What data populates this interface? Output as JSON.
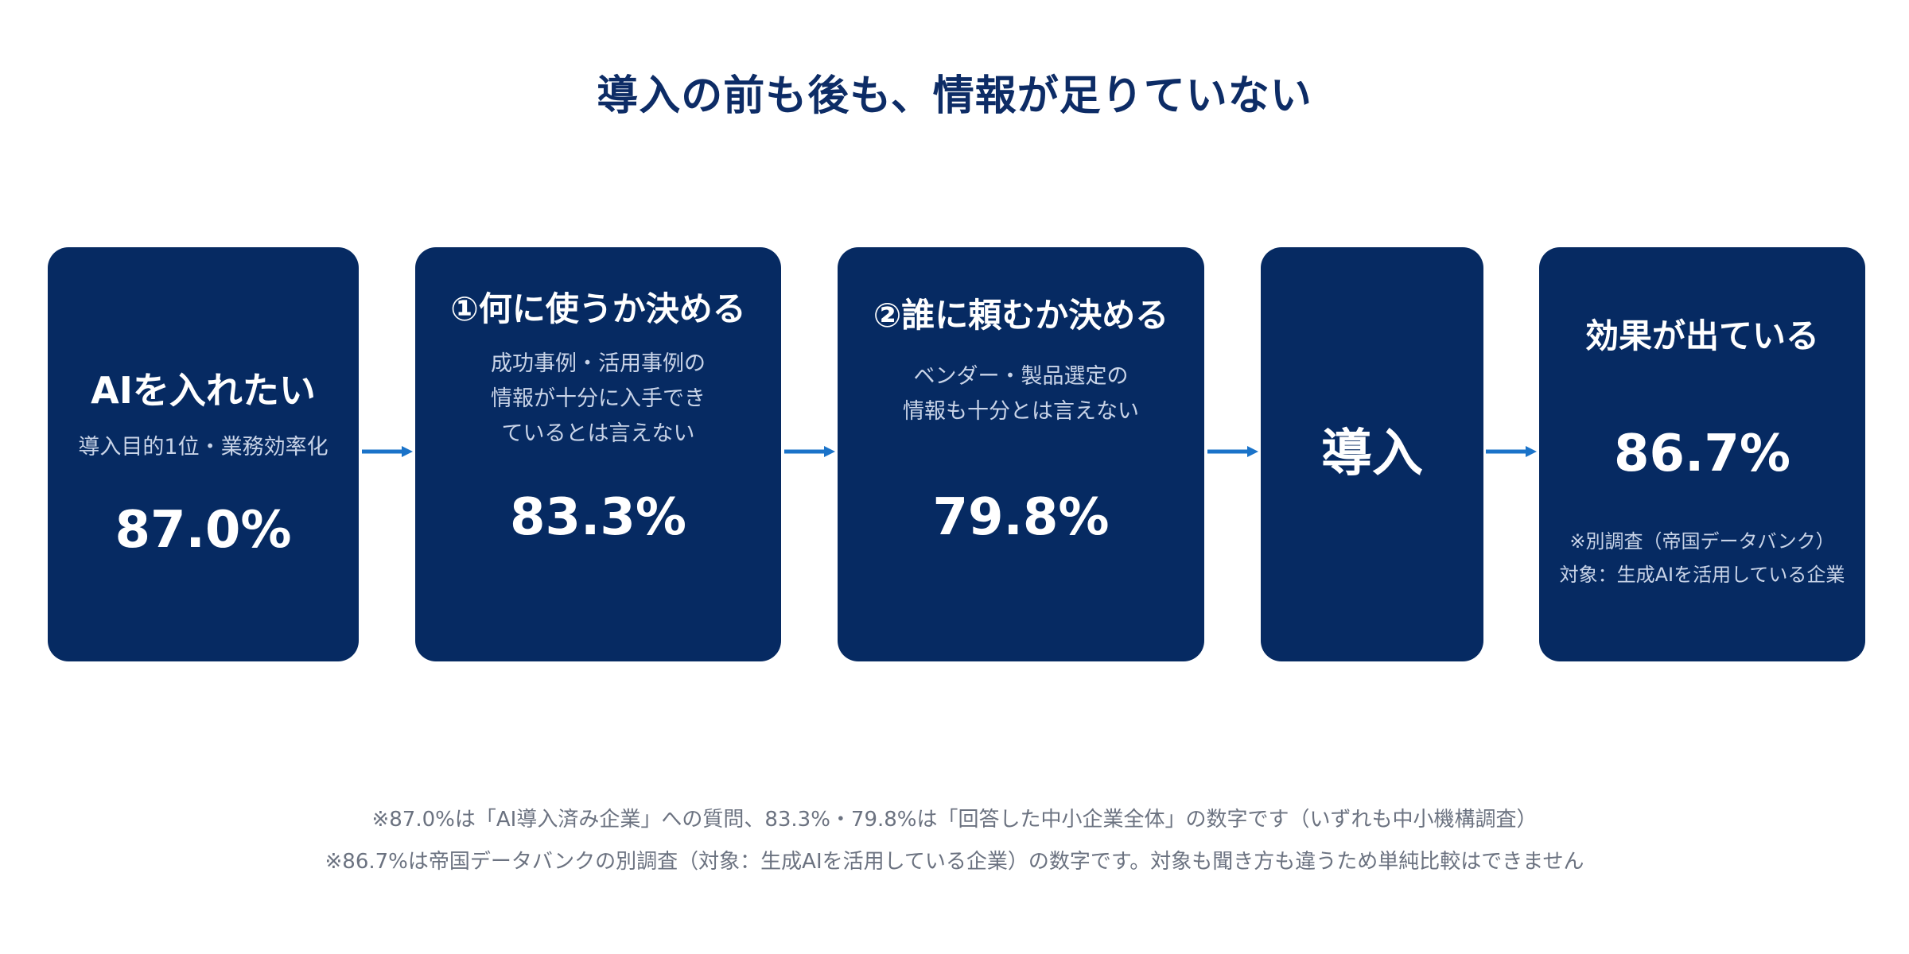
{
  "title": "導入の前も後も、情報が足りていない",
  "colors": {
    "card_bg": "#062a62",
    "title": "#0d2c66",
    "arrow": "#1a73c9",
    "footnote": "#6b7280"
  },
  "steps": [
    {
      "title": "AIを入れたい",
      "subtitle": "導入目的1位・業務効率化",
      "value": "87.0%"
    },
    {
      "title": "①何に使うか決める",
      "subtitle": "成功事例・活用事例の\n情報が十分に入手でき\nているとは言えない",
      "value": "83.3%"
    },
    {
      "title": "②誰に頼むか決める",
      "subtitle": "ベンダー・製品選定の\n情報も十分とは言えない",
      "value": "79.8%"
    },
    {
      "title": "導入"
    },
    {
      "title": "効果が出ている",
      "value": "86.7%",
      "note": "※別調査（帝国データバンク）\n対象：生成AIを活用している企業"
    }
  ],
  "footnotes": [
    "※87.0%は「AI導入済み企業」への質問、83.3%・79.8%は「回答した中小企業全体」の数字です（いずれも中小機構調査）",
    "※86.7%は帝国データバンクの別調査（対象：生成AIを活用している企業）の数字です。対象も聞き方も違うため単純比較はできません"
  ]
}
